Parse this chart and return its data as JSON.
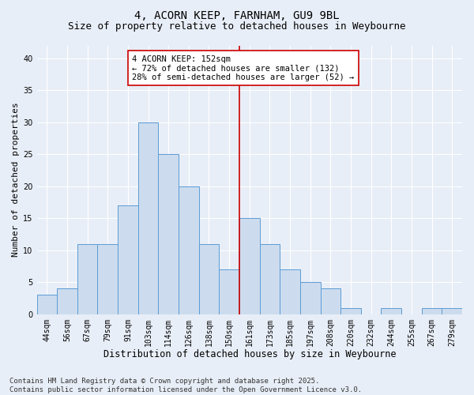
{
  "title1": "4, ACORN KEEP, FARNHAM, GU9 9BL",
  "title2": "Size of property relative to detached houses in Weybourne",
  "xlabel": "Distribution of detached houses by size in Weybourne",
  "ylabel": "Number of detached properties",
  "categories": [
    "44sqm",
    "56sqm",
    "67sqm",
    "79sqm",
    "91sqm",
    "103sqm",
    "114sqm",
    "126sqm",
    "138sqm",
    "150sqm",
    "161sqm",
    "173sqm",
    "185sqm",
    "197sqm",
    "208sqm",
    "220sqm",
    "232sqm",
    "244sqm",
    "255sqm",
    "267sqm",
    "279sqm"
  ],
  "values": [
    3,
    4,
    11,
    11,
    17,
    30,
    25,
    20,
    11,
    7,
    15,
    11,
    7,
    5,
    4,
    1,
    0,
    1,
    0,
    1,
    1
  ],
  "bar_color": "#ccdcee",
  "bar_edge_color": "#5b9bd5",
  "reference_line_x": 9.5,
  "reference_line_color": "#cc0000",
  "annotation_text": "4 ACORN KEEP: 152sqm\n← 72% of detached houses are smaller (132)\n28% of semi-detached houses are larger (52) →",
  "annotation_box_color": "#ffffff",
  "annotation_box_edge_color": "#cc0000",
  "ylim": [
    0,
    42
  ],
  "yticks": [
    0,
    5,
    10,
    15,
    20,
    25,
    30,
    35,
    40
  ],
  "background_color": "#e8eef7",
  "grid_color": "#ffffff",
  "footer_text": "Contains HM Land Registry data © Crown copyright and database right 2025.\nContains public sector information licensed under the Open Government Licence v3.0.",
  "title1_fontsize": 10,
  "title2_fontsize": 9,
  "xlabel_fontsize": 8.5,
  "ylabel_fontsize": 8,
  "tick_fontsize": 7,
  "annotation_fontsize": 7.5,
  "footer_fontsize": 6.5
}
